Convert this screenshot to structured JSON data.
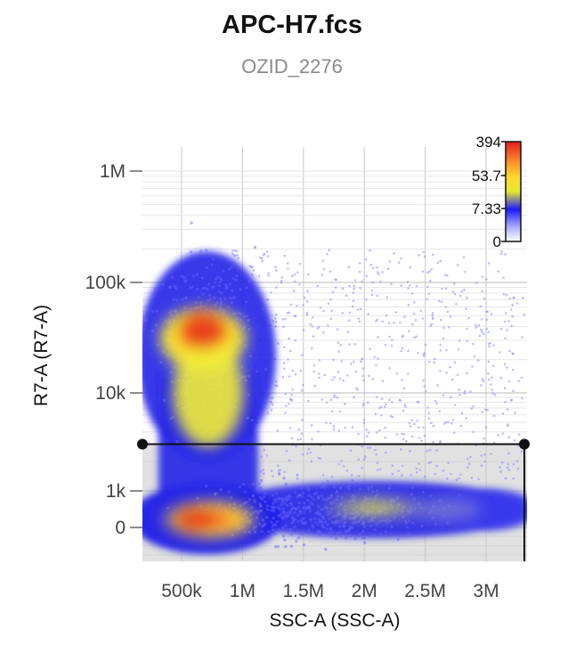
{
  "chart_data": {
    "type": "scatter",
    "title": "APC-H7.fcs",
    "subtitle": "OZID_2276",
    "xlabel": "SSC-A (SSC-A)",
    "ylabel": "R7-A (R7-A)",
    "x_ticks": [
      "500k",
      "1M",
      "1.5M",
      "2M",
      "2.5M",
      "3M"
    ],
    "x_tick_values": [
      500000,
      1000000,
      1500000,
      2000000,
      2500000,
      3000000
    ],
    "y_ticks": [
      "1M",
      "100k",
      "10k",
      "1k",
      "0"
    ],
    "y_tick_values": [
      1000000,
      100000,
      10000,
      1000,
      0
    ],
    "y_scale": "biexponential",
    "xlim": [
      180000,
      3330000
    ],
    "grid": true,
    "density_colorbar": {
      "labels": [
        "394",
        "53.7",
        "7.33",
        "0"
      ],
      "values": [
        394,
        53.7,
        7.33,
        0
      ],
      "colors": [
        "#e31a1c",
        "#fc8d2e",
        "#ffd92f",
        "#f0f020",
        "#1a1aff",
        "#b8b8ff",
        "#ffffff"
      ],
      "placement": "top-right"
    },
    "populations": [
      {
        "name": "",
        "x_center": 650000,
        "y_center": 33000,
        "peak_density": 394
      },
      {
        "name": "",
        "x_center": 680000,
        "y_center": 0,
        "peak_density": 394
      },
      {
        "name": "",
        "x_center": 2200000,
        "y_center": 0,
        "peak_density": 60
      }
    ],
    "gate": {
      "type": "rectangle",
      "x_range": [
        180000,
        3330000
      ],
      "y_top": 3000,
      "fill": "#c8c8c8"
    }
  }
}
